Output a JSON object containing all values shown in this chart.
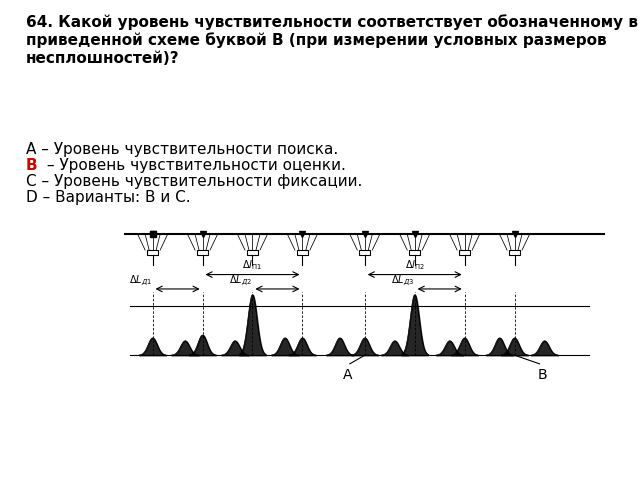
{
  "title_text": "64. Какой уровень чувствительности соответствует обозначенному в\nприведенной схеме буквой В (при измерении условных размеров\nнесплошностей)?",
  "option_A": "А – Уровень чувствительности поиска.",
  "option_B": "В – Уровень чувствительности оценки.",
  "option_C": "С – Уровень чувствительности фиксации.",
  "option_D": "D – Варианты: В и С.",
  "title_fontsize": 11,
  "option_fontsize": 11,
  "bg_color": "#ffffff",
  "text_color": "#000000",
  "highlight_color": "#cc0000",
  "diagram_color": "#000000",
  "diagram_gray": "#555555"
}
